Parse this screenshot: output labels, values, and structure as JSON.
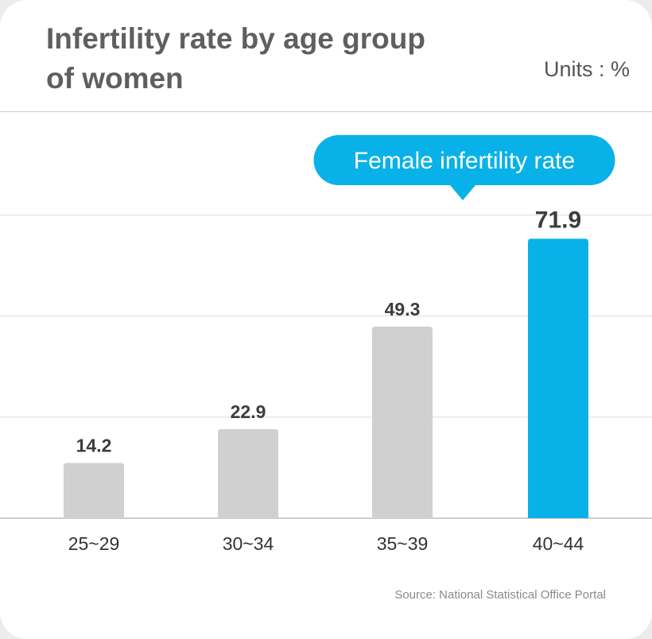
{
  "header": {
    "title": "Infertility rate by age group of women",
    "units": "Units : %"
  },
  "callout": {
    "label": "Female infertility rate"
  },
  "source": "Source: National Statistical Office Portal",
  "colors": {
    "bar_default": "#d0d0d0",
    "bar_highlight": "#08b2e8",
    "callout": "#08b2e8",
    "gridline": "#dcdcdc",
    "title": "#5f5f5f"
  },
  "chart_data": {
    "type": "bar",
    "title": "Infertility rate by age group of women",
    "xlabel": "",
    "ylabel": "",
    "categories": [
      "25~29",
      "30~34",
      "35~39",
      "40~44"
    ],
    "values": [
      14.2,
      22.9,
      49.3,
      71.9
    ],
    "value_labels": [
      "14.2",
      "22.9",
      "49.3",
      "71.9"
    ],
    "highlight_index": 3,
    "ylim": [
      0,
      80
    ],
    "grid": true
  }
}
